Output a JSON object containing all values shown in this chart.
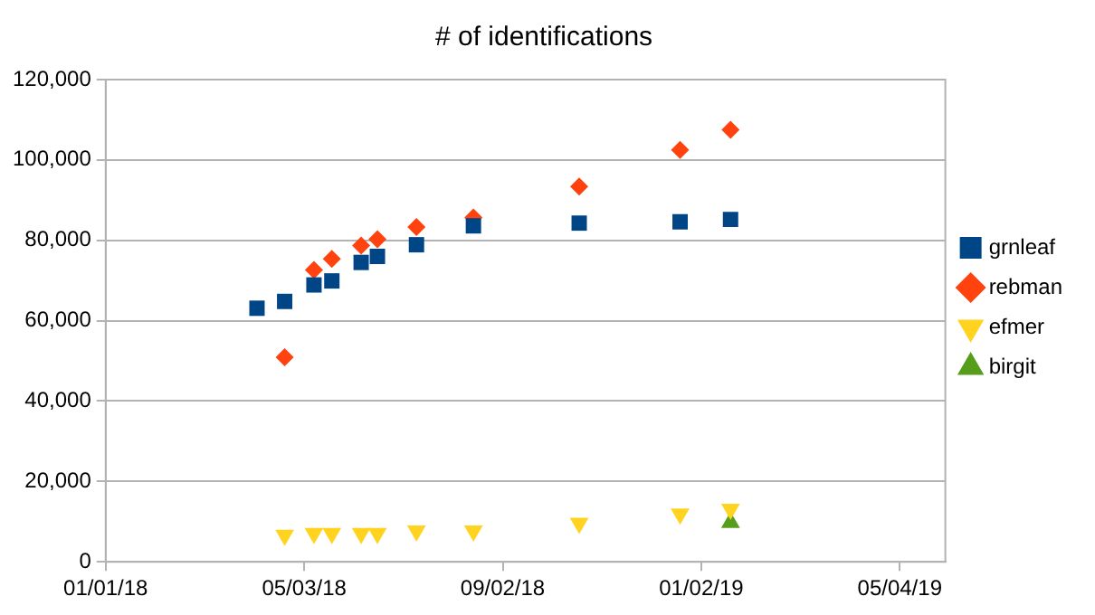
{
  "chart_data": {
    "type": "scatter",
    "title": "# of identifications",
    "series": [
      {
        "name": "grnleaf",
        "color": "#004586",
        "marker": "square",
        "x": [
          "2018-04-04",
          "2018-04-21",
          "2018-05-09",
          "2018-05-20",
          "2018-06-07",
          "2018-06-17",
          "2018-07-11",
          "2018-08-15",
          "2018-10-19",
          "2018-12-20",
          "2019-01-20"
        ],
        "values": [
          63100,
          64800,
          68900,
          69900,
          74500,
          76000,
          78900,
          83600,
          84300,
          84600,
          85200
        ]
      },
      {
        "name": "rebman",
        "color": "#ff420e",
        "marker": "diamond",
        "x": [
          "2018-04-21",
          "2018-05-09",
          "2018-05-20",
          "2018-06-07",
          "2018-06-17",
          "2018-07-11",
          "2018-08-15",
          "2018-10-19",
          "2018-12-20",
          "2019-01-20"
        ],
        "values": [
          50900,
          72600,
          75400,
          78700,
          80300,
          83300,
          85700,
          93400,
          102500,
          107500
        ]
      },
      {
        "name": "efmer",
        "color": "#ffd320",
        "marker": "triangle-down",
        "x": [
          "2018-04-21",
          "2018-05-09",
          "2018-05-20",
          "2018-06-07",
          "2018-06-17",
          "2018-07-11",
          "2018-08-15",
          "2018-10-19",
          "2018-12-20",
          "2019-01-20"
        ],
        "values": [
          6600,
          7100,
          7100,
          7100,
          7100,
          7700,
          7700,
          9600,
          11900,
          13100
        ]
      },
      {
        "name": "birgit",
        "color": "#579d1c",
        "marker": "triangle",
        "x": [
          "2019-01-20"
        ],
        "values": [
          9800
        ]
      }
    ],
    "xlim": [
      "2018-01-01",
      "2019-06-01"
    ],
    "xticks": [
      {
        "value": "2018-01-01",
        "label": "01/01/18"
      },
      {
        "value": "2018-05-03",
        "label": "05/03/18"
      },
      {
        "value": "2018-09-02",
        "label": "09/02/18"
      },
      {
        "value": "2019-01-02",
        "label": "01/02/19"
      },
      {
        "value": "2019-05-04",
        "label": "05/04/19"
      }
    ],
    "ylim": [
      0,
      120000
    ],
    "yticks": [
      {
        "value": 0,
        "label": "0"
      },
      {
        "value": 20000,
        "label": "20,000"
      },
      {
        "value": 40000,
        "label": "40,000"
      },
      {
        "value": 60000,
        "label": "60,000"
      },
      {
        "value": 80000,
        "label": "80,000"
      },
      {
        "value": 100000,
        "label": "100,000"
      },
      {
        "value": 120000,
        "label": "120,000"
      }
    ],
    "grid": "y",
    "legend": "right"
  }
}
